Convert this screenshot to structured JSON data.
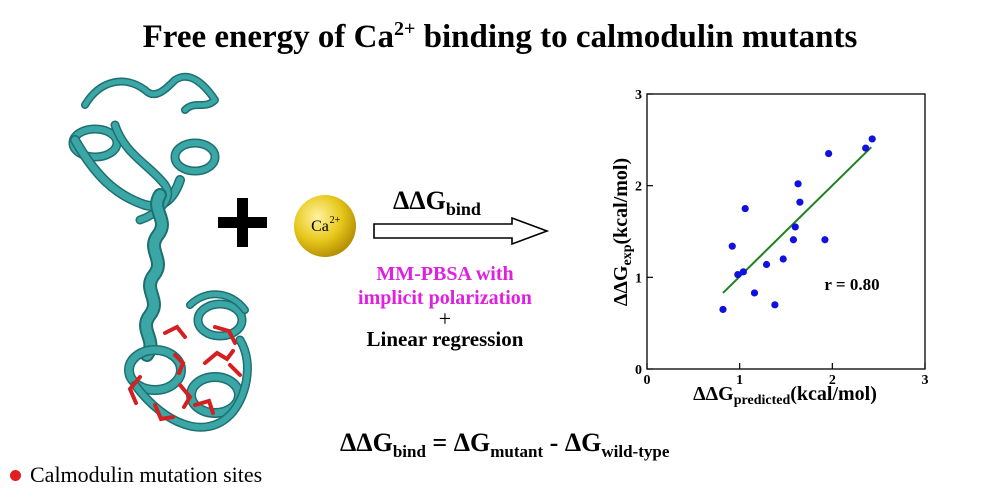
{
  "title": {
    "main": "Free energy of Ca",
    "superscript": "2+",
    "rest": " binding to calmodulin mutants"
  },
  "ion": {
    "symbol": "Ca",
    "charge": "2+",
    "color": "#e0c020"
  },
  "reaction": {
    "plus": "+",
    "delta_label": "ΔΔG",
    "delta_sub": "bind",
    "method_line1": "MM-PBSA with",
    "method_line2": "implicit polarization",
    "combine": "+",
    "regression": "Linear regression"
  },
  "equation": {
    "lhs": "ΔΔG",
    "lhs_sub": "bind",
    "eq": " = ΔG",
    "mutant_sub": "mutant",
    "minus": " - ΔG",
    "wt_sub": "wild-type"
  },
  "legend": {
    "label": "Calmodulin mutation sites",
    "color": "#e02020"
  },
  "colors": {
    "protein": "#3aa6a6",
    "protein_dark": "#1f6f70",
    "sites": "#d42020",
    "points": "#1010e0",
    "fit": "#208020",
    "method": "#e020e0"
  },
  "chart_data": {
    "type": "scatter",
    "xlabel": "ΔΔG",
    "xlabel_sub": "predicted",
    "xlabel_unit": "(kcal/mol)",
    "ylabel": "ΔΔG",
    "ylabel_sub": "exp",
    "ylabel_unit": "(kcal/mol)",
    "xlim": [
      0,
      3
    ],
    "ylim": [
      0,
      3
    ],
    "xticks": [
      0,
      1,
      2,
      3
    ],
    "yticks": [
      0,
      1,
      2,
      3
    ],
    "annotation": "r = 0.80",
    "points": [
      {
        "x": 0.82,
        "y": 0.65
      },
      {
        "x": 0.92,
        "y": 1.34
      },
      {
        "x": 0.98,
        "y": 1.03
      },
      {
        "x": 1.04,
        "y": 1.06
      },
      {
        "x": 1.06,
        "y": 1.75
      },
      {
        "x": 1.16,
        "y": 0.83
      },
      {
        "x": 1.29,
        "y": 1.14
      },
      {
        "x": 1.38,
        "y": 0.7
      },
      {
        "x": 1.47,
        "y": 1.2
      },
      {
        "x": 1.58,
        "y": 1.41
      },
      {
        "x": 1.6,
        "y": 1.55
      },
      {
        "x": 1.63,
        "y": 2.02
      },
      {
        "x": 1.65,
        "y": 1.82
      },
      {
        "x": 1.92,
        "y": 1.41
      },
      {
        "x": 1.96,
        "y": 2.35
      },
      {
        "x": 2.36,
        "y": 2.41
      },
      {
        "x": 2.43,
        "y": 2.51
      }
    ],
    "fit_line": {
      "x0": 0.82,
      "y0": 0.83,
      "x1": 2.42,
      "y1": 2.42
    }
  }
}
